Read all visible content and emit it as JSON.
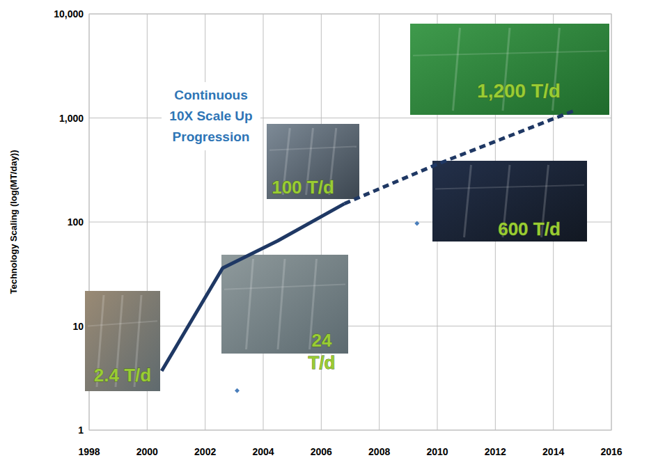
{
  "chart_data": {
    "type": "line",
    "y_label": "Technology Scaling (log(MT/day))",
    "log": "y",
    "grid": true,
    "xlim": [
      1998,
      2016
    ],
    "xticks": [
      1998,
      2000,
      2002,
      2004,
      2006,
      2008,
      2010,
      2012,
      2014,
      2016
    ],
    "ylim": [
      1,
      10000
    ],
    "yticks": [
      1,
      10,
      100,
      {
        "value": 1000,
        "label": "1,000"
      },
      {
        "value": 10000,
        "label": "10,000"
      }
    ],
    "series": [
      {
        "type": "line",
        "color": "#1f3864",
        "line_style": "solid",
        "x": [
          2000.5,
          2002.6,
          2004.5,
          2006.8
        ],
        "values": [
          3.7,
          36,
          66,
          150
        ]
      },
      {
        "type": "line",
        "color": "#1f3864",
        "line_style": "dashed",
        "x": [
          2006.8,
          2010,
          2014.8
        ],
        "values": [
          150,
          360,
          1200
        ]
      },
      {
        "type": "scatter",
        "color": "#4a7ebb",
        "marker": "diamond",
        "x": [
          2003.1,
          2009.3
        ],
        "values": [
          2.4,
          97
        ]
      }
    ],
    "annotations": [
      "Continuous 10X Scale Up Progression",
      "2.4 T/d",
      "24 T/d",
      "100 T/d",
      "600 T/d",
      "1,200 T/d"
    ]
  }
}
